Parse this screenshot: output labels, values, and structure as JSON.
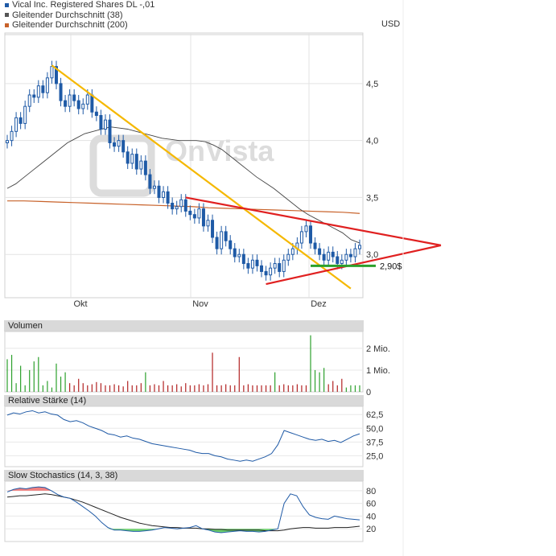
{
  "legend": [
    {
      "label": "Vical Inc. Registered Shares DL -,01",
      "color": "#1f5aa6"
    },
    {
      "label": "Gleitender Durchschnitt (38)",
      "color": "#555555"
    },
    {
      "label": "Gleitender Durchschnitt (200)",
      "color": "#c8622a"
    }
  ],
  "currency": "USD",
  "watermark": "OnVista",
  "price_annotation": "2,90$",
  "colors": {
    "candle": "#1f5aa6",
    "sma38": "#444444",
    "sma200": "#c8622a",
    "trend_yellow": "#f5b800",
    "trend_red": "#e02020",
    "support_green": "#2ca02c",
    "vol_up": "#2ca02c",
    "vol_down": "#b22222",
    "panel_header": "#d9d9d9"
  },
  "chart_data": [
    {
      "type": "candlestick",
      "title": "",
      "x_tick_labels": [
        "Okt",
        "Nov",
        "Dez"
      ],
      "y_tick_labels": [
        "4,5",
        "4,0",
        "3,5",
        "3,0"
      ],
      "ylim": [
        2.62,
        4.93
      ],
      "grid": true,
      "legend_position": "top-left",
      "closes": [
        4.0,
        4.08,
        4.2,
        4.15,
        4.3,
        4.4,
        4.38,
        4.48,
        4.42,
        4.55,
        4.65,
        4.5,
        4.35,
        4.3,
        4.4,
        4.35,
        4.28,
        4.32,
        4.4,
        4.25,
        4.22,
        4.1,
        4.18,
        3.98,
        3.95,
        4.0,
        3.9,
        3.8,
        3.88,
        3.75,
        3.82,
        3.7,
        3.58,
        3.6,
        3.5,
        3.55,
        3.45,
        3.4,
        3.42,
        3.48,
        3.38,
        3.35,
        3.32,
        3.4,
        3.25,
        3.3,
        3.15,
        3.05,
        3.2,
        3.12,
        3.05,
        2.98,
        3.0,
        2.92,
        2.88,
        2.95,
        2.9,
        2.85,
        2.82,
        2.88,
        2.92,
        2.85,
        2.95,
        3.0,
        3.05,
        3.1,
        3.2,
        3.25,
        3.1,
        3.05,
        3.0,
        2.95,
        3.02,
        2.98,
        2.92,
        2.95,
        3.0,
        2.98,
        3.05,
        3.08
      ],
      "sma38": [
        3.58,
        3.62,
        3.68,
        3.74,
        3.8,
        3.86,
        3.92,
        3.98,
        4.02,
        4.06,
        4.08,
        4.1,
        4.12,
        4.11,
        4.1,
        4.08,
        4.06,
        4.04,
        4.02,
        4.01,
        4.0,
        4.0,
        4.0,
        3.99,
        3.96,
        3.92,
        3.86,
        3.8,
        3.74,
        3.68,
        3.63,
        3.58,
        3.52,
        3.46,
        3.4,
        3.35,
        3.31,
        3.27,
        3.23,
        3.19,
        3.13,
        3.1
      ],
      "sma200": [
        3.47,
        3.47,
        3.465,
        3.46,
        3.455,
        3.45,
        3.445,
        3.44,
        3.435,
        3.43,
        3.425,
        3.42,
        3.41,
        3.405,
        3.4,
        3.395,
        3.39,
        3.385,
        3.38,
        3.375,
        3.37,
        3.36
      ],
      "annotations": [
        {
          "type": "trendline",
          "color": "trend_yellow",
          "from": [
            10,
            4.66
          ],
          "to": [
            77,
            2.7
          ]
        },
        {
          "type": "trendline",
          "color": "trend_red",
          "from": [
            40,
            3.5
          ],
          "to": [
            93,
            3.08
          ]
        },
        {
          "type": "trendline",
          "color": "trend_red",
          "from": [
            58,
            2.74
          ],
          "to": [
            93,
            3.08
          ]
        },
        {
          "type": "hline",
          "color": "support_green",
          "y": 2.9,
          "x_from": [
            68,
            84
          ],
          "label": "2,90$"
        }
      ]
    },
    {
      "type": "bar",
      "title": "Volumen",
      "y_tick_labels": [
        "2 Mio.",
        "1 Mio.",
        "0"
      ],
      "ylim": [
        0,
        2.7
      ],
      "values": [
        1.5,
        1.7,
        0.4,
        1.2,
        0.3,
        1.0,
        1.4,
        1.6,
        0.3,
        0.5,
        0.2,
        1.3,
        0.7,
        0.9,
        0.4,
        0.3,
        0.6,
        0.4,
        0.3,
        0.35,
        0.45,
        0.4,
        0.3,
        0.3,
        0.35,
        0.3,
        0.25,
        0.5,
        0.3,
        0.3,
        0.4,
        0.9,
        0.3,
        0.35,
        0.3,
        0.5,
        0.3,
        0.3,
        0.35,
        0.25,
        0.4,
        0.3,
        0.3,
        0.35,
        0.3,
        0.35,
        1.8,
        0.3,
        0.3,
        0.35,
        0.3,
        0.3,
        1.6,
        0.3,
        0.35,
        0.3,
        0.3,
        0.3,
        0.3,
        0.3,
        0.9,
        0.3,
        0.35,
        0.3,
        0.3,
        0.35,
        0.3,
        0.3,
        2.6,
        1.0,
        0.9,
        1.1,
        0.35,
        0.5,
        0.3,
        0.6,
        0.2,
        0.3,
        0.3,
        0.3
      ],
      "direction": [
        "u",
        "u",
        "u",
        "u",
        "u",
        "u",
        "u",
        "u",
        "u",
        "u",
        "u",
        "u",
        "u",
        "u",
        "d",
        "d",
        "d",
        "d",
        "d",
        "d",
        "d",
        "d",
        "d",
        "d",
        "d",
        "d",
        "d",
        "d",
        "d",
        "d",
        "d",
        "u",
        "d",
        "d",
        "d",
        "d",
        "d",
        "d",
        "d",
        "d",
        "d",
        "d",
        "d",
        "d",
        "d",
        "d",
        "d",
        "d",
        "d",
        "d",
        "d",
        "d",
        "d",
        "d",
        "d",
        "d",
        "d",
        "d",
        "d",
        "d",
        "u",
        "d",
        "d",
        "d",
        "d",
        "d",
        "d",
        "d",
        "u",
        "u",
        "u",
        "u",
        "d",
        "d",
        "d",
        "d",
        "u",
        "u",
        "u",
        "u"
      ]
    },
    {
      "type": "line",
      "title": "Relative Stärke (14)",
      "y_tick_labels": [
        "62,5",
        "50,0",
        "37,5",
        "25,0"
      ],
      "ylim": [
        15,
        70
      ],
      "values": [
        62,
        64,
        63,
        65,
        66,
        64,
        65,
        63,
        62,
        58,
        56,
        57,
        55,
        52,
        50,
        48,
        45,
        44,
        42,
        43,
        41,
        40,
        38,
        36,
        35,
        34,
        33,
        32,
        31,
        30,
        28,
        27,
        27,
        25,
        24,
        22,
        21,
        20,
        21,
        20,
        22,
        24,
        27,
        35,
        48,
        46,
        44,
        42,
        40,
        39,
        40,
        38,
        39,
        37,
        40,
        43,
        45
      ]
    },
    {
      "type": "area",
      "title": "Slow Stochastics (14, 3, 38)",
      "y_tick_labels": [
        "80",
        "60",
        "40",
        "20"
      ],
      "ylim": [
        0,
        95
      ],
      "percent_k": [
        78,
        82,
        84,
        83,
        85,
        86,
        85,
        80,
        74,
        70,
        68,
        62,
        55,
        48,
        40,
        30,
        22,
        18,
        18,
        17,
        16,
        16,
        17,
        18,
        20,
        22,
        21,
        20,
        21,
        22,
        25,
        20,
        18,
        15,
        14,
        15,
        16,
        17,
        16,
        16,
        15,
        16,
        18,
        20,
        60,
        75,
        72,
        55,
        42,
        38,
        36,
        35,
        40,
        38,
        36,
        35,
        34
      ],
      "percent_d": [
        70,
        71,
        72,
        72,
        73,
        74,
        75,
        74,
        72,
        70,
        68,
        65,
        62,
        58,
        54,
        50,
        46,
        42,
        38,
        35,
        32,
        29,
        27,
        25,
        24,
        23,
        22,
        22,
        21,
        21,
        21,
        20,
        20,
        19,
        19,
        18,
        18,
        18,
        18,
        18,
        18,
        17,
        17,
        17,
        18,
        20,
        21,
        22,
        22,
        21,
        21,
        21,
        22,
        22,
        22,
        23,
        24
      ],
      "overbought": 80,
      "oversold": 20
    }
  ]
}
